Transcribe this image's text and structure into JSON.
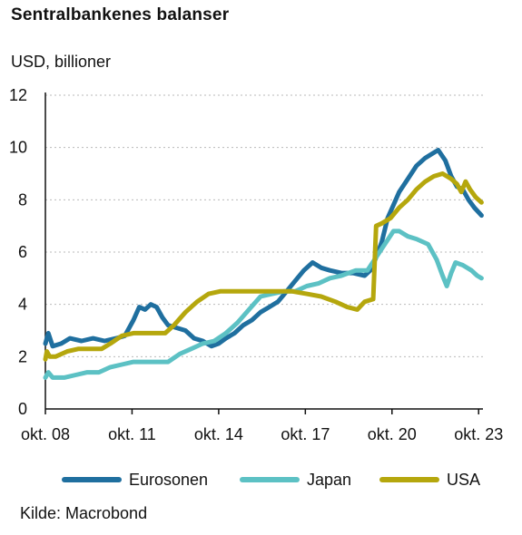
{
  "chart_data": {
    "type": "line",
    "title": "Sentralbankenes balanser",
    "ylabel": "USD, billioner",
    "source": "Kilde: Macrobond",
    "ylim": [
      0,
      12
    ],
    "yticks": [
      "0",
      "2",
      "4",
      "6",
      "8",
      "10",
      "12"
    ],
    "xlim": [
      2008.75,
      2023.9
    ],
    "xticks": [
      {
        "label": "okt. 08",
        "x": 2008.75
      },
      {
        "label": "okt. 11",
        "x": 2011.75
      },
      {
        "label": "okt. 14",
        "x": 2014.75
      },
      {
        "label": "okt. 17",
        "x": 2017.75
      },
      {
        "label": "okt. 20",
        "x": 2020.75
      },
      {
        "label": "okt. 23",
        "x": 2023.75
      }
    ],
    "grid": "horizontal-dotted",
    "legend": "bottom",
    "series": [
      {
        "name": "Eurosonen",
        "color": "#1f6f9f",
        "points": [
          [
            2008.75,
            2.5
          ],
          [
            2008.85,
            2.9
          ],
          [
            2009.0,
            2.4
          ],
          [
            2009.3,
            2.5
          ],
          [
            2009.6,
            2.7
          ],
          [
            2010.0,
            2.6
          ],
          [
            2010.4,
            2.7
          ],
          [
            2010.8,
            2.6
          ],
          [
            2011.2,
            2.7
          ],
          [
            2011.5,
            2.8
          ],
          [
            2011.8,
            3.4
          ],
          [
            2012.0,
            3.9
          ],
          [
            2012.2,
            3.8
          ],
          [
            2012.4,
            4.0
          ],
          [
            2012.6,
            3.9
          ],
          [
            2012.8,
            3.5
          ],
          [
            2013.0,
            3.2
          ],
          [
            2013.3,
            3.1
          ],
          [
            2013.6,
            3.0
          ],
          [
            2013.9,
            2.7
          ],
          [
            2014.2,
            2.6
          ],
          [
            2014.5,
            2.4
          ],
          [
            2014.75,
            2.5
          ],
          [
            2015.0,
            2.7
          ],
          [
            2015.3,
            2.9
          ],
          [
            2015.6,
            3.2
          ],
          [
            2015.9,
            3.4
          ],
          [
            2016.2,
            3.7
          ],
          [
            2016.5,
            3.9
          ],
          [
            2016.8,
            4.1
          ],
          [
            2017.1,
            4.5
          ],
          [
            2017.4,
            4.9
          ],
          [
            2017.7,
            5.3
          ],
          [
            2018.0,
            5.6
          ],
          [
            2018.3,
            5.4
          ],
          [
            2018.6,
            5.3
          ],
          [
            2019.0,
            5.2
          ],
          [
            2019.4,
            5.2
          ],
          [
            2019.8,
            5.1
          ],
          [
            2020.0,
            5.3
          ],
          [
            2020.2,
            5.8
          ],
          [
            2020.4,
            6.4
          ],
          [
            2020.6,
            7.3
          ],
          [
            2020.8,
            7.8
          ],
          [
            2021.0,
            8.3
          ],
          [
            2021.3,
            8.8
          ],
          [
            2021.6,
            9.3
          ],
          [
            2021.9,
            9.6
          ],
          [
            2022.2,
            9.8
          ],
          [
            2022.35,
            9.9
          ],
          [
            2022.6,
            9.5
          ],
          [
            2022.8,
            8.9
          ],
          [
            2023.0,
            8.5
          ],
          [
            2023.2,
            8.4
          ],
          [
            2023.4,
            8.0
          ],
          [
            2023.6,
            7.7
          ],
          [
            2023.85,
            7.4
          ]
        ]
      },
      {
        "name": "Japan",
        "color": "#5cc1c4",
        "points": [
          [
            2008.75,
            1.2
          ],
          [
            2008.85,
            1.4
          ],
          [
            2009.0,
            1.2
          ],
          [
            2009.4,
            1.2
          ],
          [
            2009.8,
            1.3
          ],
          [
            2010.2,
            1.4
          ],
          [
            2010.6,
            1.4
          ],
          [
            2011.0,
            1.6
          ],
          [
            2011.4,
            1.7
          ],
          [
            2011.8,
            1.8
          ],
          [
            2012.2,
            1.8
          ],
          [
            2012.6,
            1.8
          ],
          [
            2013.0,
            1.8
          ],
          [
            2013.4,
            2.1
          ],
          [
            2013.8,
            2.3
          ],
          [
            2014.2,
            2.5
          ],
          [
            2014.6,
            2.6
          ],
          [
            2015.0,
            2.9
          ],
          [
            2015.4,
            3.3
          ],
          [
            2015.8,
            3.8
          ],
          [
            2016.2,
            4.3
          ],
          [
            2016.6,
            4.4
          ],
          [
            2017.0,
            4.5
          ],
          [
            2017.4,
            4.5
          ],
          [
            2017.8,
            4.7
          ],
          [
            2018.2,
            4.8
          ],
          [
            2018.6,
            5.0
          ],
          [
            2019.0,
            5.1
          ],
          [
            2019.5,
            5.3
          ],
          [
            2019.9,
            5.3
          ],
          [
            2020.2,
            5.8
          ],
          [
            2020.5,
            6.3
          ],
          [
            2020.8,
            6.8
          ],
          [
            2021.0,
            6.8
          ],
          [
            2021.3,
            6.6
          ],
          [
            2021.6,
            6.5
          ],
          [
            2022.0,
            6.3
          ],
          [
            2022.3,
            5.7
          ],
          [
            2022.5,
            5.1
          ],
          [
            2022.65,
            4.7
          ],
          [
            2022.8,
            5.2
          ],
          [
            2022.95,
            5.6
          ],
          [
            2023.2,
            5.5
          ],
          [
            2023.5,
            5.3
          ],
          [
            2023.7,
            5.1
          ],
          [
            2023.85,
            5.0
          ]
        ]
      },
      {
        "name": "USA",
        "color": "#b5a70d",
        "points": [
          [
            2008.75,
            1.9
          ],
          [
            2008.8,
            2.2
          ],
          [
            2008.9,
            2.0
          ],
          [
            2009.1,
            2.0
          ],
          [
            2009.5,
            2.2
          ],
          [
            2009.9,
            2.3
          ],
          [
            2010.3,
            2.3
          ],
          [
            2010.7,
            2.3
          ],
          [
            2011.0,
            2.5
          ],
          [
            2011.4,
            2.8
          ],
          [
            2011.8,
            2.9
          ],
          [
            2012.2,
            2.9
          ],
          [
            2012.6,
            2.9
          ],
          [
            2012.9,
            2.9
          ],
          [
            2013.2,
            3.2
          ],
          [
            2013.6,
            3.7
          ],
          [
            2014.0,
            4.1
          ],
          [
            2014.4,
            4.4
          ],
          [
            2014.8,
            4.5
          ],
          [
            2015.3,
            4.5
          ],
          [
            2015.8,
            4.5
          ],
          [
            2016.3,
            4.5
          ],
          [
            2016.8,
            4.5
          ],
          [
            2017.3,
            4.5
          ],
          [
            2017.8,
            4.4
          ],
          [
            2018.3,
            4.3
          ],
          [
            2018.8,
            4.1
          ],
          [
            2019.2,
            3.9
          ],
          [
            2019.55,
            3.8
          ],
          [
            2019.8,
            4.1
          ],
          [
            2020.1,
            4.2
          ],
          [
            2020.2,
            7.0
          ],
          [
            2020.4,
            7.1
          ],
          [
            2020.7,
            7.3
          ],
          [
            2021.0,
            7.7
          ],
          [
            2021.3,
            8.0
          ],
          [
            2021.6,
            8.4
          ],
          [
            2021.9,
            8.7
          ],
          [
            2022.2,
            8.9
          ],
          [
            2022.5,
            9.0
          ],
          [
            2022.8,
            8.8
          ],
          [
            2023.0,
            8.6
          ],
          [
            2023.15,
            8.3
          ],
          [
            2023.3,
            8.7
          ],
          [
            2023.45,
            8.4
          ],
          [
            2023.65,
            8.1
          ],
          [
            2023.85,
            7.9
          ]
        ]
      }
    ]
  }
}
